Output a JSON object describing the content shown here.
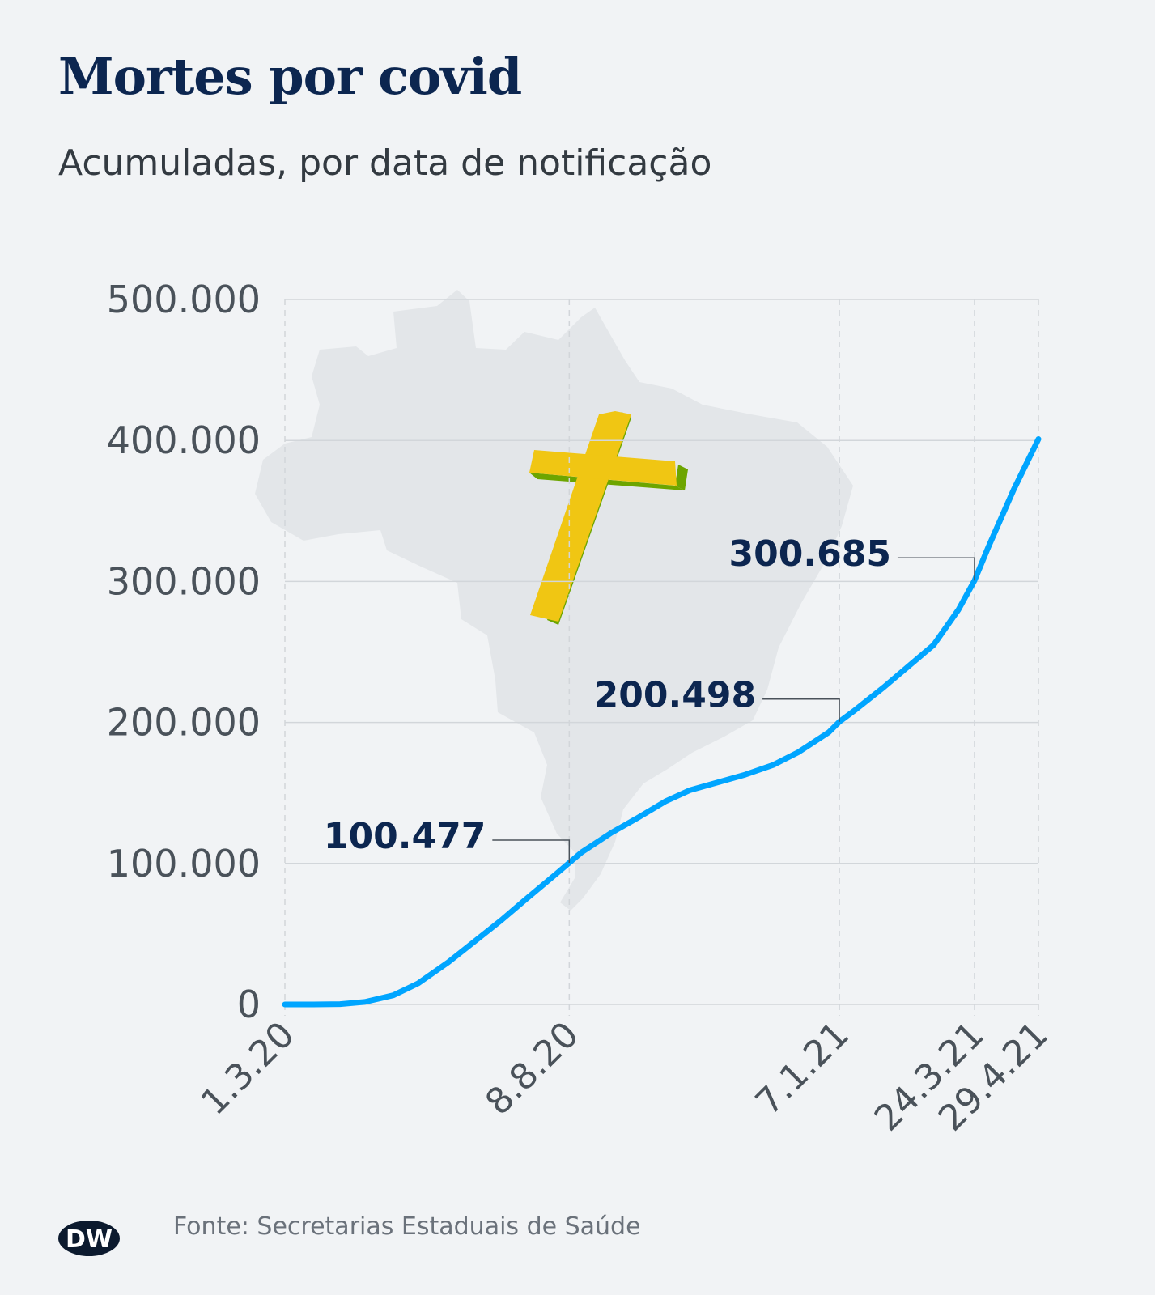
{
  "title": "Mortes por covid",
  "subtitle": "Acumuladas, por data de notificação",
  "source": "Fonte: Secretarias Estaduais de Saúde",
  "logo_text": "DW",
  "colors": {
    "line": "#00a5ff",
    "title": "#0c2650",
    "annotation": "#0c2650",
    "map": "#e3e6e9",
    "cross_face": "#f0c613",
    "cross_side": "#6da500",
    "grid": "#d2d6da",
    "tick_text": "#4a525a"
  },
  "illustration": {
    "map_icon": "brazil-map-icon",
    "cross_icon": "cross-icon"
  },
  "chart_data": {
    "type": "line",
    "title": "Mortes por covid",
    "subtitle": "Acumuladas, por data de notificação",
    "xlabel": "",
    "ylabel": "",
    "ylim": [
      0,
      500000
    ],
    "yticks": [
      0,
      100000,
      200000,
      300000,
      400000,
      500000
    ],
    "ytick_labels": [
      "0",
      "100.000",
      "200.000",
      "300.000",
      "400.000",
      "500.000"
    ],
    "xlim": [
      "2020-03-01",
      "2021-04-29"
    ],
    "xticks": [
      "2020-03-01",
      "2020-08-08",
      "2021-01-07",
      "2021-03-24",
      "2021-04-29"
    ],
    "xtick_labels": [
      "1.3.20",
      "8.8.20",
      "7.1.21",
      "24.3.21",
      "29.4.21"
    ],
    "grid": true,
    "series": [
      {
        "x": [
          "2020-03-01",
          "2020-03-17",
          "2020-04-01",
          "2020-04-15",
          "2020-05-01",
          "2020-05-15",
          "2020-06-01",
          "2020-06-15",
          "2020-07-01",
          "2020-07-15",
          "2020-08-01",
          "2020-08-08",
          "2020-08-15",
          "2020-09-01",
          "2020-09-15",
          "2020-10-01",
          "2020-10-15",
          "2020-11-01",
          "2020-11-15",
          "2020-12-01",
          "2020-12-15",
          "2021-01-01",
          "2021-01-07",
          "2021-01-15",
          "2021-02-01",
          "2021-02-15",
          "2021-03-01",
          "2021-03-15",
          "2021-03-24",
          "2021-04-01",
          "2021-04-15",
          "2021-04-29"
        ],
        "values": [
          0,
          0,
          250,
          1800,
          6500,
          15000,
          30000,
          44000,
          60000,
          75000,
          93000,
          100477,
          108000,
          122000,
          132000,
          144000,
          152000,
          158000,
          163000,
          170000,
          179000,
          193000,
          200498,
          208000,
          225000,
          240000,
          255000,
          280000,
          300685,
          325000,
          365000,
          401000
        ]
      }
    ],
    "annotations": [
      {
        "x": "2020-08-08",
        "value": 100477,
        "label": "100.477"
      },
      {
        "x": "2021-01-07",
        "value": 200498,
        "label": "200.498"
      },
      {
        "x": "2021-03-24",
        "value": 300685,
        "label": "300.685"
      }
    ]
  }
}
